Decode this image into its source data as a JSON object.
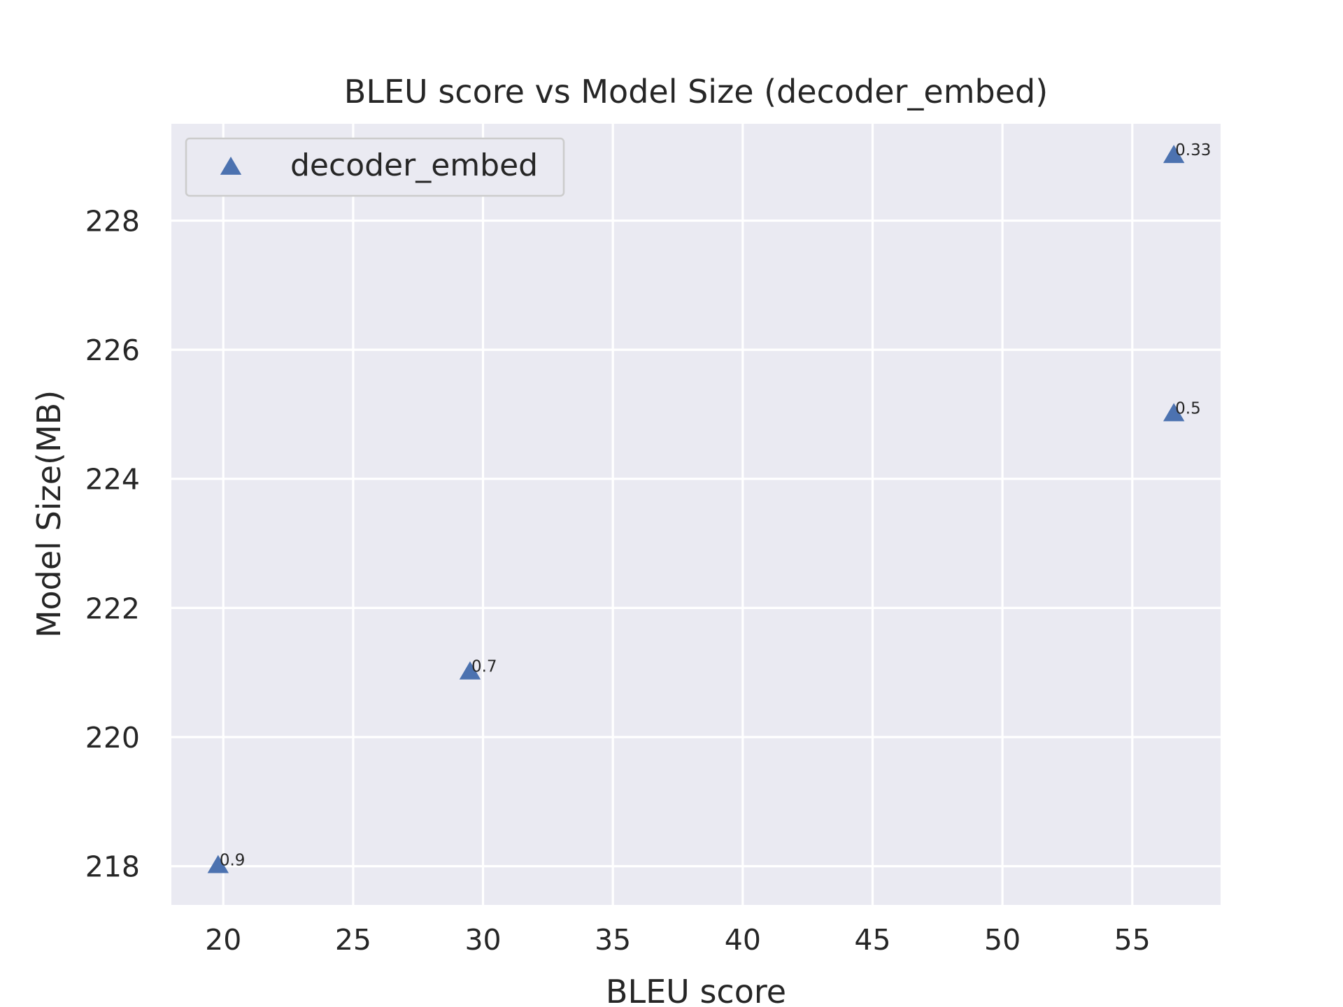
{
  "chart_data": {
    "type": "scatter",
    "title": "BLEU score vs Model Size (decoder_embed)",
    "xlabel": "BLEU score",
    "ylabel": "Model Size(MB)",
    "xlim": [
      18,
      58.4
    ],
    "ylim": [
      217.4,
      229.5
    ],
    "xticks": [
      20,
      25,
      30,
      35,
      40,
      45,
      50,
      55
    ],
    "yticks": [
      218,
      220,
      222,
      224,
      226,
      228
    ],
    "grid": true,
    "legend": {
      "placement": "top-left"
    },
    "series": [
      {
        "name": "decoder_embed",
        "marker": "triangle-up",
        "color": "#4c72b0",
        "points": [
          {
            "x": 19.8,
            "y": 218,
            "label": "0.9"
          },
          {
            "x": 29.5,
            "y": 221,
            "label": "0.7"
          },
          {
            "x": 56.6,
            "y": 225,
            "label": "0.5"
          },
          {
            "x": 56.6,
            "y": 229,
            "label": "0.33"
          }
        ]
      }
    ]
  },
  "colors": {
    "plot_background": "#eaeaf2",
    "grid": "#ffffff",
    "text": "#262626",
    "legend_border": "#cccccc"
  }
}
